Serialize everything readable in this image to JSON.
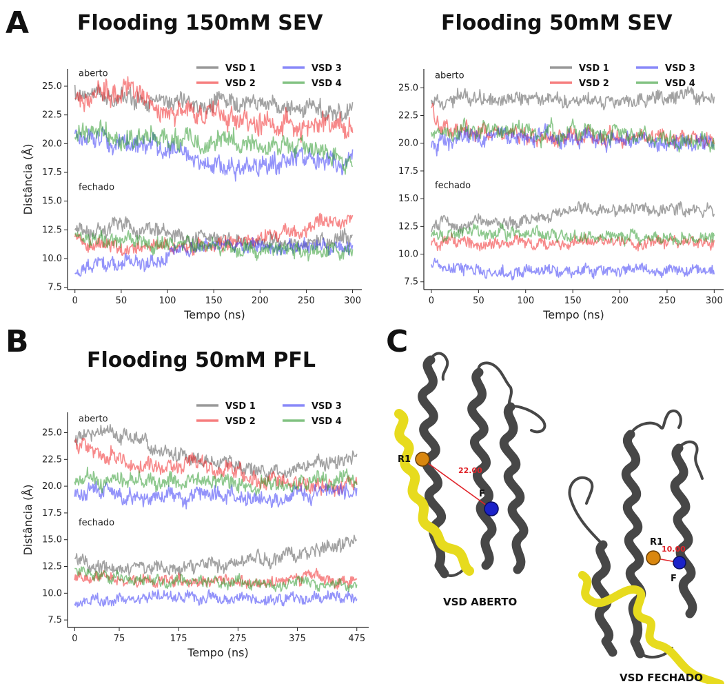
{
  "panel_letters": {
    "a": "A",
    "b": "B",
    "c": "C"
  },
  "legend_labels": [
    "VSD 1",
    "VSD 2",
    "VSD 3",
    "VSD 4"
  ],
  "colors": {
    "VSD 1": "#555555",
    "VSD 2": "#f0282a",
    "VSD 3": "#3a3af5",
    "VSD 4": "#2f9a2f"
  },
  "chart_data": [
    {
      "id": "sev150",
      "type": "line",
      "title": "Flooding 150mM SEV",
      "xlabel": "Tempo (ns)",
      "ylabel": "Distância (Å)",
      "xlim": [
        -8,
        310
      ],
      "ylim": [
        7.3,
        26.5
      ],
      "xticks": [
        0,
        50,
        100,
        150,
        200,
        250,
        300
      ],
      "yticks": [
        7.5,
        10.0,
        12.5,
        15.0,
        17.5,
        20.0,
        22.5,
        25.0
      ],
      "region_labels": [
        {
          "text": "aberto",
          "y": 26.1
        },
        {
          "text": "fechado",
          "y": 16.2
        }
      ],
      "legend_placement": "top-right",
      "series": [
        {
          "name": "VSD 1",
          "x": [
            0,
            50,
            100,
            150,
            200,
            250,
            300
          ],
          "y": [
            24.5,
            24.0,
            23.5,
            23.5,
            23.5,
            23.0,
            23.0
          ],
          "noise": 0.7
        },
        {
          "name": "VSD 2",
          "x": [
            0,
            30,
            60,
            100,
            150,
            200,
            250,
            300
          ],
          "y": [
            24.0,
            24.5,
            24.5,
            23.0,
            22.5,
            22.0,
            21.5,
            21.5
          ],
          "noise": 0.9
        },
        {
          "name": "VSD 3",
          "x": [
            0,
            50,
            100,
            150,
            175,
            200,
            250,
            300
          ],
          "y": [
            20.5,
            20.0,
            19.5,
            18.0,
            17.5,
            18.5,
            18.5,
            18.5
          ],
          "noise": 0.8
        },
        {
          "name": "VSD 4",
          "x": [
            0,
            50,
            100,
            150,
            200,
            250,
            300
          ],
          "y": [
            21.0,
            20.5,
            20.5,
            20.0,
            20.0,
            19.5,
            18.5
          ],
          "noise": 0.8
        },
        {
          "name": "VSD 1",
          "x": [
            0,
            50,
            100,
            150,
            200,
            250,
            300
          ],
          "y": [
            12.5,
            13.0,
            12.0,
            11.5,
            11.5,
            11.5,
            11.5
          ],
          "noise": 0.6
        },
        {
          "name": "VSD 2",
          "x": [
            0,
            50,
            100,
            150,
            200,
            250,
            270,
            300
          ],
          "y": [
            11.5,
            11.0,
            11.0,
            11.0,
            12.0,
            12.5,
            13.5,
            13.0
          ],
          "noise": 0.6
        },
        {
          "name": "VSD 3",
          "x": [
            0,
            50,
            95,
            110,
            150,
            200,
            250,
            300
          ],
          "y": [
            9.0,
            9.5,
            9.5,
            11.0,
            11.0,
            11.0,
            11.0,
            11.0
          ],
          "noise": 0.6
        },
        {
          "name": "VSD 4",
          "x": [
            0,
            50,
            100,
            150,
            200,
            250,
            300
          ],
          "y": [
            12.0,
            11.5,
            11.5,
            11.0,
            11.0,
            10.5,
            10.5
          ],
          "noise": 0.6
        }
      ]
    },
    {
      "id": "sev50",
      "type": "line",
      "title": "Flooding 50mM SEV",
      "xlabel": "Tempo (ns)",
      "ylabel": "",
      "xlim": [
        -8,
        310
      ],
      "ylim": [
        6.8,
        26.7
      ],
      "xticks": [
        0,
        50,
        100,
        150,
        200,
        250,
        300
      ],
      "yticks": [
        7.5,
        10.0,
        12.5,
        15.0,
        17.5,
        20.0,
        22.5,
        25.0
      ],
      "region_labels": [
        {
          "text": "aberto",
          "y": 26.1
        },
        {
          "text": "fechado",
          "y": 16.2
        }
      ],
      "legend_placement": "top-right",
      "series": [
        {
          "name": "VSD 1",
          "x": [
            0,
            50,
            100,
            150,
            200,
            250,
            300
          ],
          "y": [
            24.0,
            24.2,
            24.2,
            24.0,
            24.0,
            24.0,
            24.0
          ],
          "noise": 0.6
        },
        {
          "name": "VSD 2",
          "x": [
            0,
            10,
            50,
            100,
            150,
            200,
            250,
            300
          ],
          "y": [
            24.0,
            21.5,
            21.0,
            20.5,
            20.5,
            20.5,
            20.5,
            20.0
          ],
          "noise": 0.7
        },
        {
          "name": "VSD 3",
          "x": [
            0,
            50,
            100,
            150,
            200,
            250,
            300
          ],
          "y": [
            20.0,
            20.5,
            20.5,
            20.5,
            20.5,
            20.0,
            20.0
          ],
          "noise": 0.7
        },
        {
          "name": "VSD 4",
          "x": [
            0,
            50,
            100,
            150,
            200,
            250,
            300
          ],
          "y": [
            21.0,
            21.5,
            21.0,
            21.0,
            21.0,
            20.5,
            20.0
          ],
          "noise": 0.7
        },
        {
          "name": "VSD 1",
          "x": [
            0,
            50,
            100,
            150,
            200,
            250,
            300
          ],
          "y": [
            12.5,
            13.0,
            13.0,
            14.0,
            14.0,
            14.0,
            14.0
          ],
          "noise": 0.5
        },
        {
          "name": "VSD 2",
          "x": [
            0,
            50,
            100,
            150,
            200,
            250,
            300
          ],
          "y": [
            11.0,
            11.0,
            11.0,
            11.0,
            11.0,
            11.0,
            11.0
          ],
          "noise": 0.5
        },
        {
          "name": "VSD 3",
          "x": [
            0,
            50,
            100,
            150,
            200,
            250,
            300
          ],
          "y": [
            9.0,
            8.5,
            8.5,
            8.5,
            8.5,
            8.5,
            8.5
          ],
          "noise": 0.5
        },
        {
          "name": "VSD 4",
          "x": [
            0,
            50,
            100,
            150,
            200,
            250,
            300
          ],
          "y": [
            12.0,
            12.0,
            12.0,
            11.5,
            11.5,
            11.5,
            11.5
          ],
          "noise": 0.5
        }
      ]
    },
    {
      "id": "pfl50",
      "type": "line",
      "title": "Flooding 50mM PFL",
      "xlabel": "Tempo (ns)",
      "ylabel": "Distância (Å)",
      "xlim": [
        -12,
        495
      ],
      "ylim": [
        6.8,
        26.9
      ],
      "xticks": [
        0,
        75,
        175,
        275,
        375,
        475
      ],
      "yticks": [
        7.5,
        10.0,
        12.5,
        15.0,
        17.5,
        20.0,
        22.5,
        25.0
      ],
      "region_labels": [
        {
          "text": "aberto",
          "y": 26.3
        },
        {
          "text": "fechado",
          "y": 16.6
        }
      ],
      "legend_placement": "top-right",
      "series": [
        {
          "name": "VSD 1",
          "x": [
            0,
            50,
            100,
            150,
            200,
            250,
            300,
            350,
            400,
            475
          ],
          "y": [
            24.5,
            25.0,
            24.5,
            23.0,
            22.5,
            22.0,
            21.5,
            21.5,
            22.0,
            22.5
          ],
          "noise": 0.6
        },
        {
          "name": "VSD 2",
          "x": [
            0,
            50,
            100,
            150,
            200,
            250,
            300,
            350,
            400,
            475
          ],
          "y": [
            24.0,
            23.0,
            22.5,
            22.0,
            22.0,
            21.5,
            20.5,
            20.5,
            20.0,
            20.0
          ],
          "noise": 0.7
        },
        {
          "name": "VSD 3",
          "x": [
            0,
            50,
            100,
            200,
            300,
            350,
            400,
            475
          ],
          "y": [
            19.5,
            19.5,
            19.0,
            19.0,
            19.0,
            18.5,
            19.5,
            19.5
          ],
          "noise": 0.7
        },
        {
          "name": "VSD 4",
          "x": [
            0,
            50,
            100,
            200,
            300,
            400,
            475
          ],
          "y": [
            20.5,
            20.5,
            20.5,
            20.5,
            20.0,
            20.5,
            20.5
          ],
          "noise": 0.7
        },
        {
          "name": "VSD 1",
          "x": [
            0,
            50,
            100,
            150,
            200,
            250,
            300,
            350,
            400,
            450,
            475
          ],
          "y": [
            13.0,
            12.5,
            12.5,
            12.5,
            12.5,
            12.5,
            13.0,
            13.5,
            14.0,
            14.5,
            15.0
          ],
          "noise": 0.6
        },
        {
          "name": "VSD 2",
          "x": [
            0,
            50,
            100,
            200,
            300,
            400,
            475
          ],
          "y": [
            11.5,
            11.5,
            11.0,
            11.0,
            11.0,
            11.5,
            11.0
          ],
          "noise": 0.5
        },
        {
          "name": "VSD 3",
          "x": [
            0,
            50,
            100,
            200,
            300,
            400,
            475
          ],
          "y": [
            9.0,
            9.0,
            9.5,
            9.5,
            9.5,
            9.5,
            9.5
          ],
          "noise": 0.5
        },
        {
          "name": "VSD 4",
          "x": [
            0,
            50,
            100,
            200,
            300,
            400,
            475
          ],
          "y": [
            12.0,
            11.5,
            11.5,
            11.0,
            11.0,
            11.0,
            10.5
          ],
          "noise": 0.5
        }
      ]
    }
  ],
  "structures": {
    "open": {
      "caption": "VSD ABERTO",
      "r1": "R1",
      "f": "F",
      "distance": "22.00"
    },
    "closed": {
      "caption": "VSD FECHADO",
      "r1": "R1",
      "f": "F",
      "distance": "10.00"
    }
  }
}
